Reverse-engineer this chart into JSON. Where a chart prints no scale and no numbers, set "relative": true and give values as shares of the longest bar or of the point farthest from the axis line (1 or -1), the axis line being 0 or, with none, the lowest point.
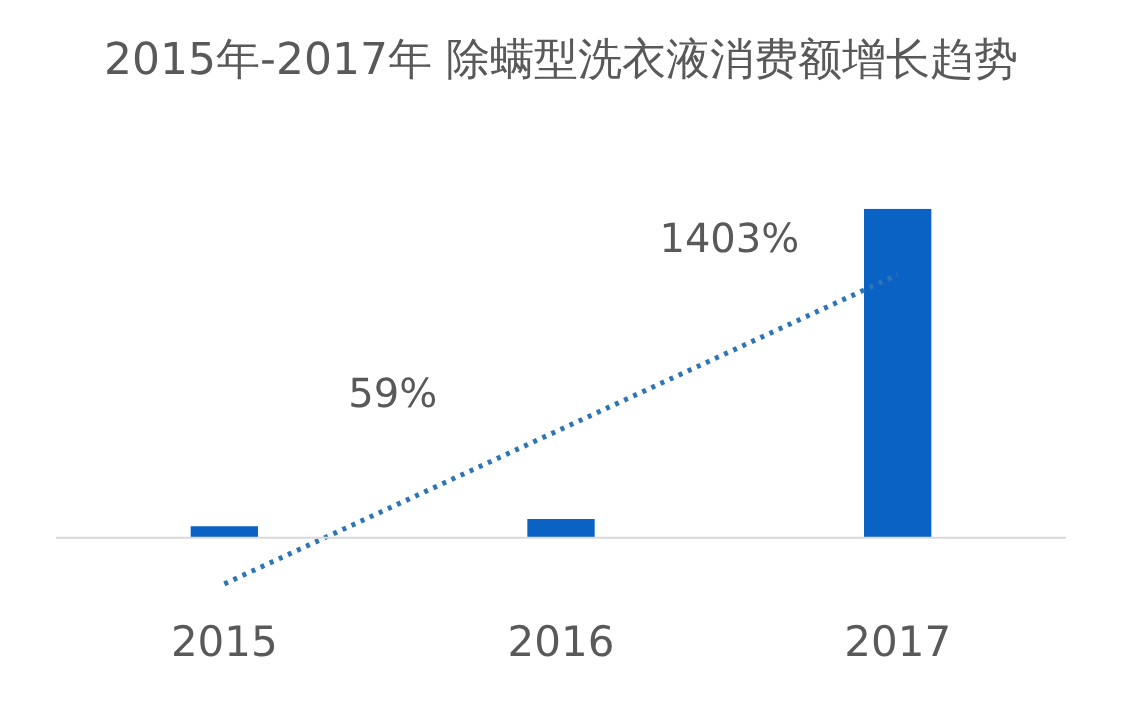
{
  "chart_data": {
    "type": "bar",
    "title": "2015年-2017年 除螨型洗衣液消费额增长趋势",
    "categories": [
      "2015",
      "2016",
      "2017"
    ],
    "relative": true,
    "series": [
      {
        "color": "#0a63c4",
        "values": [
          0.035,
          0.057,
          1
        ]
      },
      {
        "type": "line",
        "color": "#2e75b6",
        "line_style": "dotted",
        "marker": "none",
        "values": [
          -0.14,
          0.33,
          0.8
        ]
      }
    ],
    "annotations": [
      "59%",
      "1403%"
    ],
    "grid": false,
    "legend": false
  }
}
